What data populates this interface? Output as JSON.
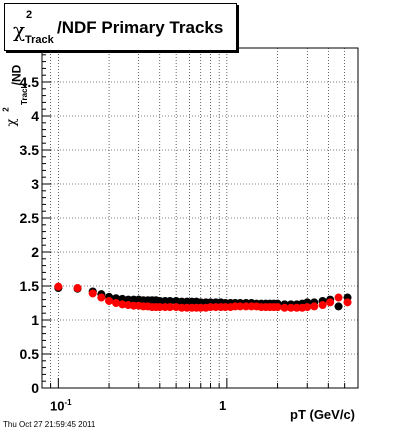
{
  "title": {
    "chi": "χ",
    "sup": "2",
    "sub": "Track",
    "rest": "/NDF  Primary Tracks"
  },
  "y_axis_label": {
    "chi": "χ",
    "sup": "2",
    "sub": "Track",
    "rest": "/ND"
  },
  "x_axis_label": "pT (GeV/c)",
  "footer_timestamp": "Thu Oct 27 21:59:45 2011",
  "colors": {
    "series_black": "#000000",
    "series_red": "#ff0000",
    "grid": "#000000"
  },
  "chart_data": {
    "type": "scatter",
    "xlabel": "pT (GeV/c)",
    "x_scale": "log",
    "xlim": [
      0.08,
      6.0
    ],
    "ylim": [
      0,
      5
    ],
    "grid": true,
    "y_ticks": [
      "0",
      "0.5",
      "1",
      "1.5",
      "2",
      "2.5",
      "3",
      "3.5",
      "4",
      "4.5"
    ],
    "x_tick_labels": [
      {
        "value": 0.1,
        "base": "10",
        "exp": "-1"
      },
      {
        "value": 1,
        "base": "1",
        "exp": ""
      }
    ],
    "series": [
      {
        "x": [
          0.1,
          0.13,
          0.16,
          0.18,
          0.2,
          0.22,
          0.24,
          0.26,
          0.28,
          0.3,
          0.32,
          0.34,
          0.36,
          0.38,
          0.4,
          0.43,
          0.46,
          0.5,
          0.54,
          0.58,
          0.62,
          0.66,
          0.7,
          0.75,
          0.8,
          0.86,
          0.92,
          0.98,
          1.05,
          1.12,
          1.2,
          1.3,
          1.4,
          1.5,
          1.6,
          1.7,
          1.8,
          1.9,
          2.0,
          2.2,
          2.4,
          2.6,
          2.8,
          3.0,
          3.3,
          3.7,
          4.1,
          4.6,
          5.2
        ],
        "y": [
          1.47,
          1.46,
          1.42,
          1.38,
          1.34,
          1.32,
          1.31,
          1.3,
          1.3,
          1.3,
          1.29,
          1.29,
          1.29,
          1.29,
          1.28,
          1.28,
          1.28,
          1.28,
          1.27,
          1.27,
          1.27,
          1.27,
          1.26,
          1.26,
          1.26,
          1.26,
          1.26,
          1.25,
          1.25,
          1.25,
          1.25,
          1.25,
          1.25,
          1.24,
          1.24,
          1.24,
          1.24,
          1.24,
          1.24,
          1.23,
          1.23,
          1.23,
          1.24,
          1.26,
          1.26,
          1.28,
          1.3,
          1.2,
          1.33
        ]
      },
      {
        "x": [
          0.1,
          0.13,
          0.16,
          0.18,
          0.2,
          0.22,
          0.24,
          0.26,
          0.28,
          0.3,
          0.32,
          0.34,
          0.36,
          0.38,
          0.4,
          0.43,
          0.46,
          0.5,
          0.54,
          0.58,
          0.62,
          0.66,
          0.7,
          0.75,
          0.8,
          0.86,
          0.92,
          0.98,
          1.05,
          1.12,
          1.2,
          1.3,
          1.4,
          1.5,
          1.6,
          1.7,
          1.8,
          1.9,
          2.0,
          2.2,
          2.4,
          2.6,
          2.8,
          3.0,
          3.3,
          3.7,
          4.1,
          4.6,
          5.2
        ],
        "y": [
          1.49,
          1.47,
          1.39,
          1.33,
          1.28,
          1.25,
          1.23,
          1.22,
          1.21,
          1.21,
          1.2,
          1.2,
          1.19,
          1.19,
          1.19,
          1.19,
          1.19,
          1.19,
          1.18,
          1.18,
          1.18,
          1.18,
          1.18,
          1.18,
          1.19,
          1.19,
          1.19,
          1.19,
          1.19,
          1.2,
          1.2,
          1.2,
          1.2,
          1.2,
          1.19,
          1.19,
          1.19,
          1.19,
          1.19,
          1.18,
          1.18,
          1.18,
          1.18,
          1.19,
          1.2,
          1.22,
          1.26,
          1.33,
          1.26
        ]
      }
    ]
  }
}
